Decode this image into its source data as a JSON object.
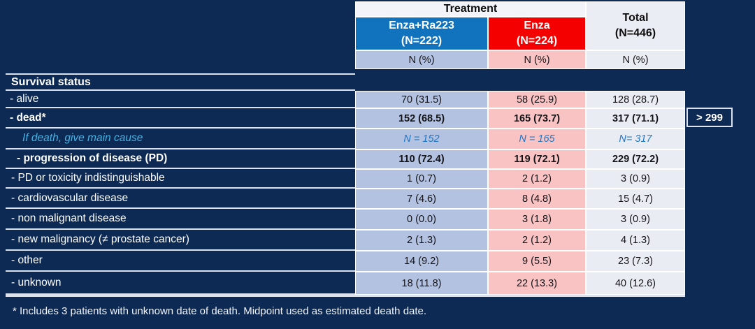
{
  "colors": {
    "slide_background": "#0d2a55",
    "enza_ra223_header": "#1173be",
    "enza_header": "#f40000",
    "enza_ra223_cell": "#b3c2e0",
    "enza_cell": "#f9c3c3",
    "total_cell": "#eaecf3",
    "cyan_text": "#46b3e3",
    "blue_value_text": "#1e77c6"
  },
  "header": {
    "treatment_label": "Treatment",
    "col_enza_ra223": {
      "line1": "Enza+Ra223",
      "line2": "(N=222)",
      "color": "#1173be"
    },
    "col_enza": {
      "line1": "Enza",
      "line2": "(N=224)",
      "color": "#f40000"
    },
    "col_total": {
      "line1": "Total",
      "line2": "(N=446)"
    },
    "unit_label": "N (%)"
  },
  "chart_data": {
    "type": "table",
    "title": "Survival status",
    "columns": [
      "Enza+Ra223 (N=222)",
      "Enza (N=224)",
      "Total (N=446)"
    ],
    "unit": "N (%)",
    "rows": [
      {
        "label": "- alive",
        "values": [
          "70 (31.5)",
          "58 (25.9)",
          "128 (28.7)"
        ]
      },
      {
        "label": "- dead*",
        "values": [
          "152 (68.5)",
          "165 (73.7)",
          "317 (71.1)"
        ]
      },
      {
        "label": "If death, give main cause",
        "values": [
          "N = 152",
          "N = 165",
          "N= 317"
        ]
      },
      {
        "label": "- progression of disease (PD)",
        "values": [
          "110 (72.4)",
          "119 (72.1)",
          "229 (72.2)"
        ]
      },
      {
        "label": "- PD or toxicity indistinguishable",
        "values": [
          "1 (0.7)",
          "2 (1.2)",
          "3 (0.9)"
        ]
      },
      {
        "label": "- cardiovascular disease",
        "values": [
          "7 (4.6)",
          "8 (4.8)",
          "15 (4.7)"
        ]
      },
      {
        "label": "- non malignant disease",
        "values": [
          "0 (0.0)",
          "3 (1.8)",
          "3 (0.9)"
        ]
      },
      {
        "label": "- new malignancy (≠ prostate cancer)",
        "values": [
          "2 (1.3)",
          "2 (1.2)",
          "4 (1.3)"
        ]
      },
      {
        "label": "- other",
        "values": [
          "14 (9.2)",
          "9 (5.5)",
          "23 (7.3)"
        ]
      },
      {
        "label": "- unknown",
        "values": [
          "18 (11.8)",
          "22 (13.3)",
          "40 (12.6)"
        ]
      }
    ]
  },
  "annotation": {
    "dead_total_callout": "> 299"
  },
  "footnote": "* Includes 3 patients with unknown date of death. Midpoint used as estimated death date."
}
